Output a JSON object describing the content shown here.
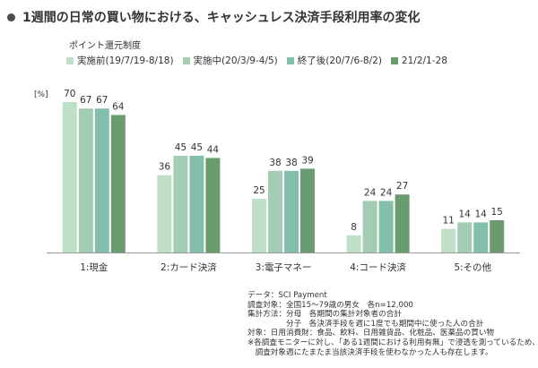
{
  "title": "1週間の日常の買い物における、キャッシュレス決済手段利用率の変化",
  "legend_title": "ポイント還元制度",
  "footnotes": [
    "データ：SCI Payment",
    "調査対象：全国15～79歳の男女　各n=12,000",
    "集計方法：分母　各期間の集計対象者の合計",
    "　　　　　分子　各決済手段を週に1度でも期間中に使った人の合計",
    "対象：日用消費財：食品、飲料、日用雑貨品、化粧品、医薬品の買い物",
    "※各調査モニターに対し、「ある1週間における利用有無」で浸透を測っているため、",
    "　調査対象週にたまたま当該決済手段を使わなかった人も存在します。"
  ],
  "colors": [
    "#bfe0c6",
    "#a2ccb4",
    "#84bfac",
    "#6b9c70"
  ],
  "chart_data": {
    "type": "bar",
    "unit_label": "[%]",
    "categories": [
      "1:現金",
      "2:カード決済",
      "3:電子マネー",
      "4:コード決済",
      "5:その他"
    ],
    "series": [
      {
        "name": "実施前(19/7/19-8/18)",
        "values": [
          70,
          36,
          25,
          8,
          11
        ]
      },
      {
        "name": "実施中(20/3/9-4/5)",
        "values": [
          67,
          45,
          38,
          24,
          14
        ]
      },
      {
        "name": "終了後(20/7/6-8/2)",
        "values": [
          67,
          45,
          38,
          24,
          14
        ]
      },
      {
        "name": "21/2/1-28",
        "values": [
          64,
          44,
          39,
          27,
          15
        ]
      }
    ],
    "ylim": [
      0,
      80
    ],
    "grid": false,
    "legend_position": "top-left"
  }
}
